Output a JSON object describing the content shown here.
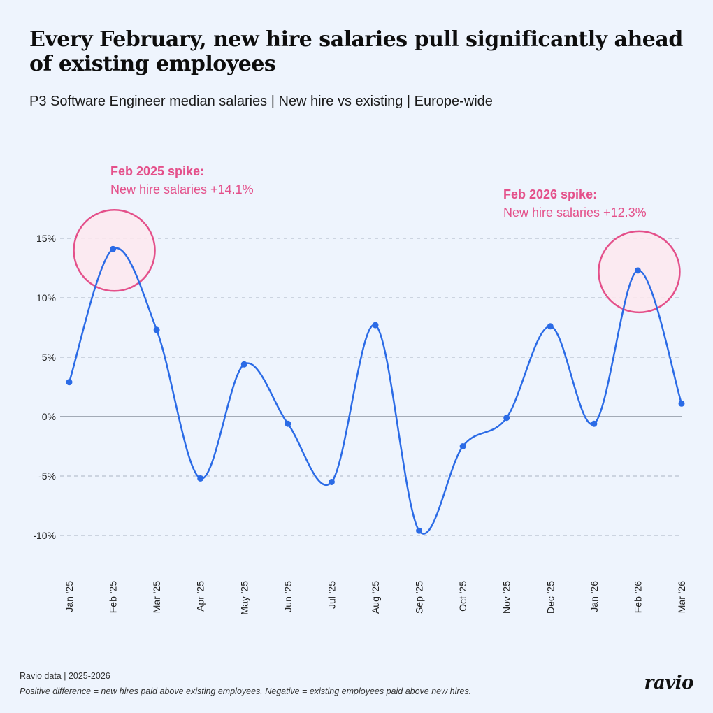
{
  "title": "Every February, new hire salaries pull significantly ahead of existing employees",
  "subtitle": "P3 Software Engineer median salaries | New hire vs existing | Europe-wide",
  "source": "Ravio data | 2025-2026",
  "footnote": "Positive difference = new hires paid above existing employees. Negative = existing employees paid above new hires.",
  "logo": "ravio",
  "colors": {
    "line": "#2b6be6",
    "annotation": "#e4508a",
    "annotation_fill": "#fde8ee",
    "background": "#eef4fd"
  },
  "chart_data": {
    "type": "line",
    "categories": [
      "Jan '25",
      "Feb '25",
      "Mar '25",
      "Apr '25",
      "May '25",
      "Jun '25",
      "Jul '25",
      "Aug '25",
      "Sep '25",
      "Oct '25",
      "Nov '25",
      "Dec '25",
      "Jan '26",
      "Feb '26",
      "Mar '26"
    ],
    "series": [
      {
        "values": [
          2.9,
          14.1,
          7.3,
          -5.2,
          4.4,
          -0.6,
          -5.5,
          7.7,
          -9.6,
          -2.5,
          -0.1,
          7.6,
          -0.6,
          12.3,
          1.1
        ]
      }
    ],
    "ylim": [
      -10,
      15
    ],
    "yticks": [
      15,
      10,
      5,
      0,
      -5,
      -10
    ],
    "ytick_labels": [
      "15%",
      "10%",
      "5%",
      "0%",
      "-5%",
      "-10%"
    ],
    "grid": "horizontal dashed",
    "annotations": [
      {
        "category": "Feb '25",
        "value": 14.1,
        "title": "Feb 2025 spike:",
        "text": "New hire salaries +14.1%"
      },
      {
        "category": "Feb '26",
        "value": 12.3,
        "title": "Feb 2026 spike:",
        "text": "New hire salaries +12.3%"
      }
    ]
  }
}
